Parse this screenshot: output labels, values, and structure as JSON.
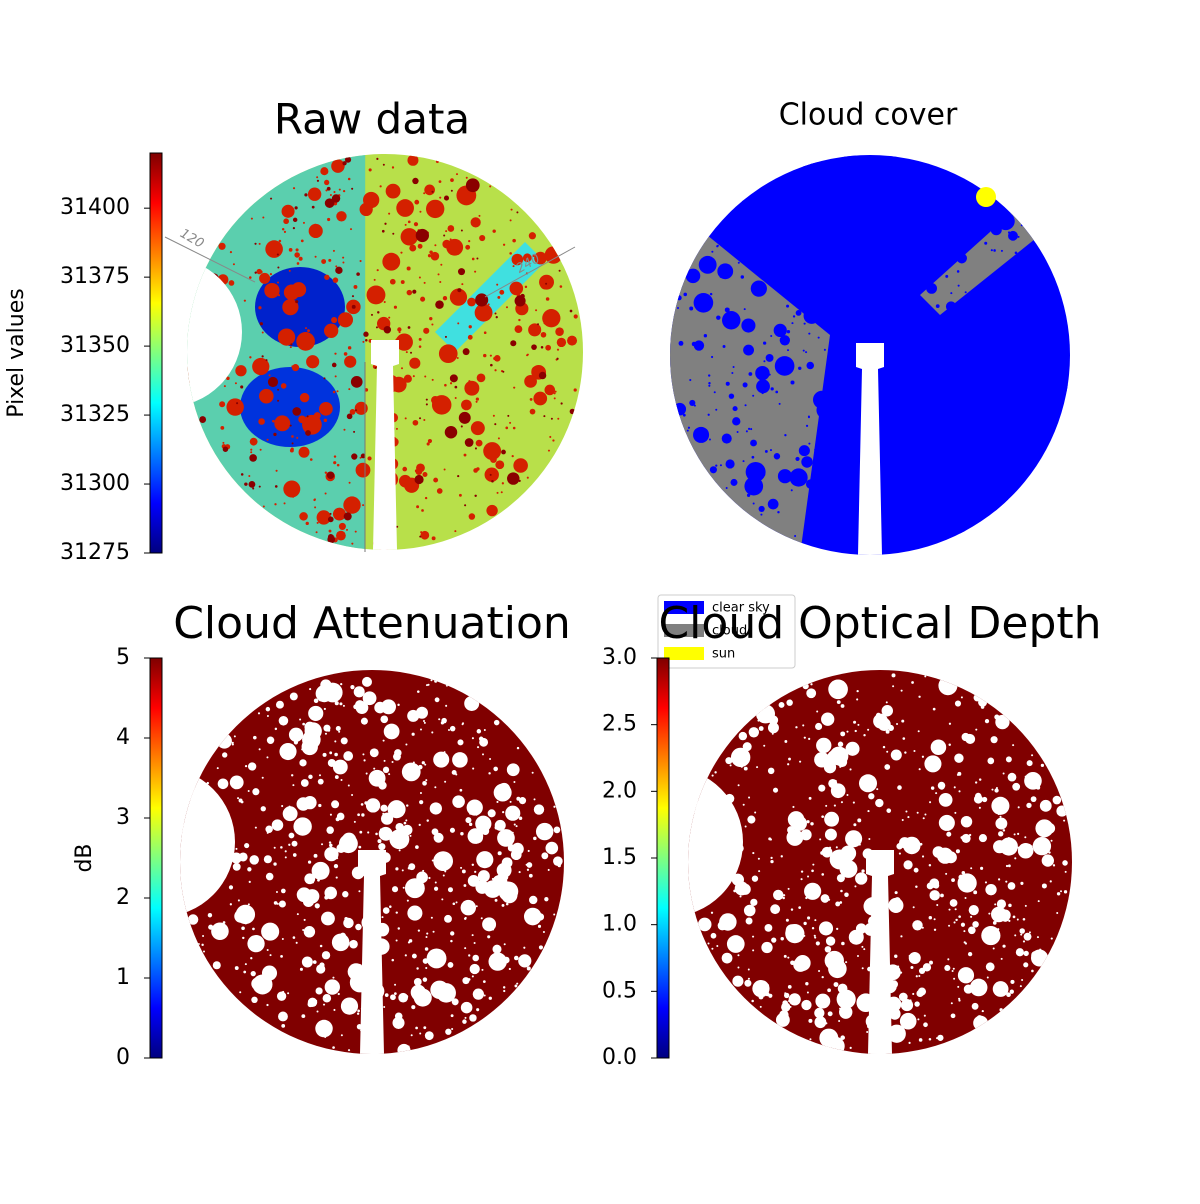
{
  "chart_data": [
    {
      "type": "heatmap",
      "title": "Raw data",
      "ylabel": "Pixel values",
      "colormap": "jet",
      "ylim": [
        31275,
        31420
      ],
      "yticks": [
        31275,
        31300,
        31325,
        31350,
        31375,
        31400
      ],
      "annotations": [
        "120",
        "240"
      ]
    },
    {
      "type": "classification",
      "title": "Cloud cover",
      "series": [
        {
          "name": "clear sky",
          "color": "#0000ff"
        },
        {
          "name": "cloud",
          "color": "#808080"
        },
        {
          "name": "sun",
          "color": "#ffff00"
        }
      ]
    },
    {
      "type": "heatmap",
      "title": "Cloud Attenuation",
      "ylabel": "dB",
      "colormap": "jet",
      "ylim": [
        0,
        5
      ],
      "yticks": [
        0,
        1,
        2,
        3,
        4,
        5
      ]
    },
    {
      "type": "heatmap",
      "title": "Cloud Optical Depth",
      "colormap": "jet",
      "ylim": [
        0,
        3
      ],
      "yticks": [
        {
          "value": 0,
          "label": "0.0"
        },
        0.5,
        {
          "value": 1,
          "label": "1.0"
        },
        1.5,
        {
          "value": 2,
          "label": "2.0"
        },
        2.5,
        {
          "value": 3,
          "label": "3.0"
        }
      ]
    }
  ]
}
